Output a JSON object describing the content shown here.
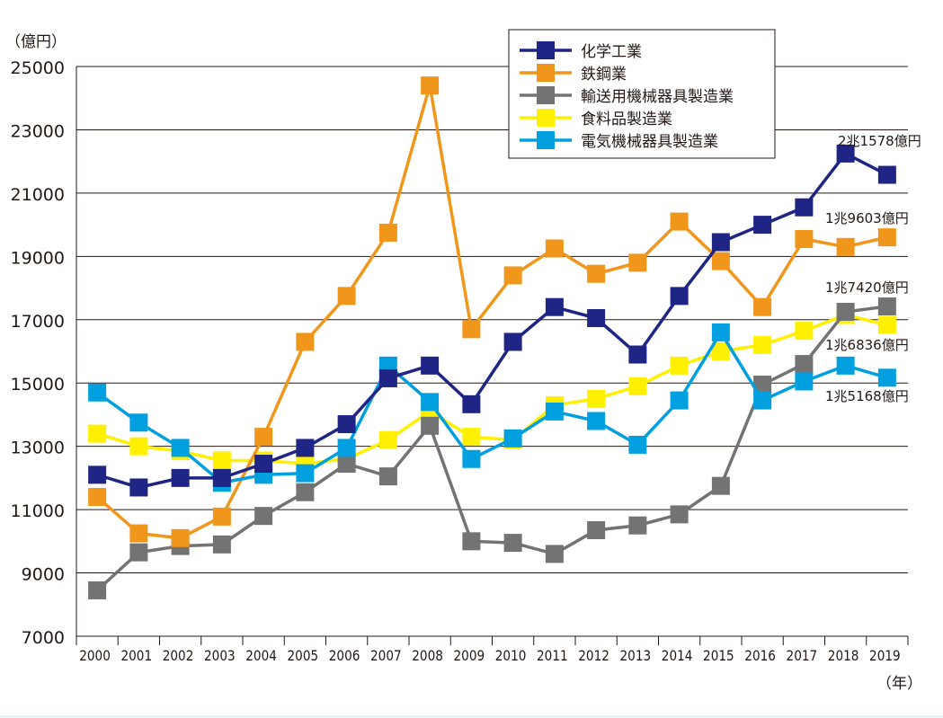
{
  "chart_data": {
    "type": "line",
    "ylabel": "（億円）",
    "xlabel": "（年）",
    "ylim": [
      7000,
      25000
    ],
    "yticks": [
      7000,
      9000,
      11000,
      13000,
      15000,
      17000,
      19000,
      21000,
      23000,
      25000
    ],
    "grid": true,
    "legend_position": "top-center",
    "x": [
      2000,
      2001,
      2002,
      2003,
      2004,
      2005,
      2006,
      2007,
      2008,
      2009,
      2010,
      2011,
      2012,
      2013,
      2014,
      2015,
      2016,
      2017,
      2018,
      2019
    ],
    "series": [
      {
        "name": "化学工業",
        "color": "#1f2585",
        "values": [
          12100,
          11700,
          12000,
          12000,
          12450,
          12950,
          13700,
          15150,
          15550,
          14330,
          16300,
          17400,
          17050,
          15900,
          17750,
          19450,
          20000,
          20550,
          22250,
          21578
        ]
      },
      {
        "name": "鉄鋼業",
        "color": "#f0961a",
        "values": [
          11400,
          10250,
          10100,
          10780,
          13300,
          16300,
          17750,
          19750,
          24400,
          16700,
          18400,
          19250,
          18450,
          18800,
          20100,
          18850,
          17400,
          19550,
          19300,
          19603
        ]
      },
      {
        "name": "輸送用機械器具製造業",
        "color": "#737373",
        "values": [
          8450,
          9650,
          9850,
          9900,
          10800,
          11550,
          12450,
          12050,
          13650,
          10000,
          9950,
          9600,
          10350,
          10500,
          10850,
          11750,
          14950,
          15600,
          17250,
          17420
        ]
      },
      {
        "name": "食料品製造業",
        "color": "#fff000",
        "values": [
          13400,
          13000,
          12850,
          12550,
          12550,
          12450,
          12600,
          13200,
          14100,
          13300,
          13200,
          14300,
          14500,
          14900,
          15550,
          16000,
          16200,
          16650,
          17150,
          16836
        ]
      },
      {
        "name": "電気機械器具製造業",
        "color": "#00a0e0",
        "values": [
          14700,
          13750,
          12950,
          11850,
          12100,
          12150,
          12950,
          15550,
          14400,
          12600,
          13250,
          14100,
          13800,
          13050,
          14450,
          16600,
          14450,
          15050,
          15550,
          15168
        ]
      }
    ],
    "annotations": [
      {
        "series": "化学工業",
        "text": "2兆1578億円"
      },
      {
        "series": "鉄鋼業",
        "text": "1兆9603億円"
      },
      {
        "series": "輸送用機械器具製造業",
        "text": "1兆7420億円"
      },
      {
        "series": "食料品製造業",
        "text": "1兆6836億円"
      },
      {
        "series": "電気機械器具製造業",
        "text": "1兆5168億円"
      }
    ]
  }
}
